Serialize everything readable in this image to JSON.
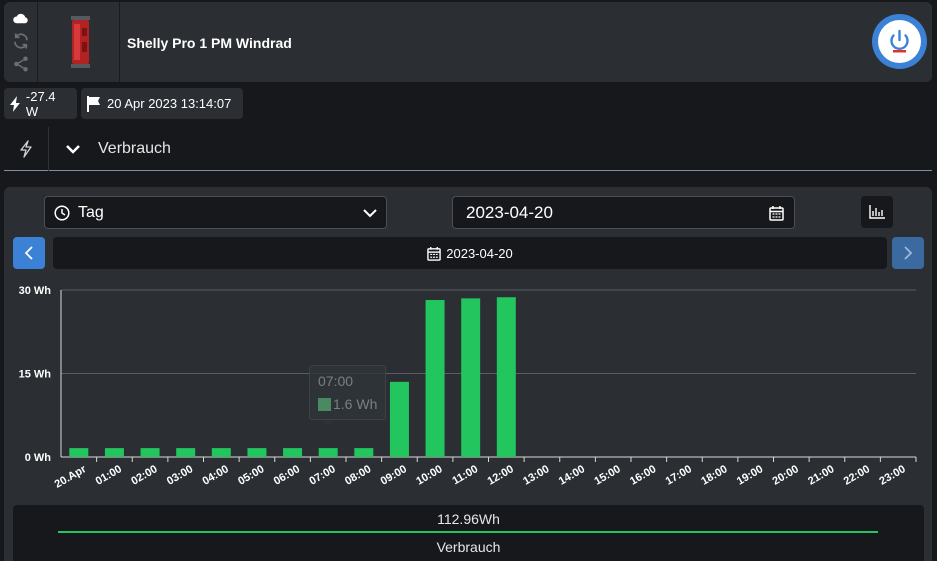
{
  "header": {
    "device_name": "Shelly Pro 1 PM Windrad",
    "icons": [
      "cloud-icon",
      "refresh-icon",
      "share-icon"
    ],
    "power_state": "on",
    "accent_color": "#3b82d6"
  },
  "status": {
    "power": "-27.4 W",
    "timestamp": "20 Apr 2023 13:14:07"
  },
  "section": {
    "title": "Verbrauch"
  },
  "controls": {
    "period": "Tag",
    "date_input": "2023-04-20",
    "current_date": "2023-04-20"
  },
  "tooltip": {
    "time": "07:00",
    "value": "1.6 Wh"
  },
  "legend": {
    "total": "112.96Wh",
    "name": "Verbrauch",
    "color": "#22c55e"
  },
  "chart_data": {
    "type": "bar",
    "categories": [
      "20.Apr",
      "01:00",
      "02:00",
      "03:00",
      "04:00",
      "05:00",
      "06:00",
      "07:00",
      "08:00",
      "09:00",
      "10:00",
      "11:00",
      "12:00",
      "13:00",
      "14:00",
      "15:00",
      "16:00",
      "17:00",
      "18:00",
      "19:00",
      "20:00",
      "21:00",
      "22:00",
      "23:00"
    ],
    "series": [
      {
        "name": "Verbrauch",
        "values": [
          1.6,
          1.6,
          1.6,
          1.6,
          1.6,
          1.6,
          1.6,
          1.6,
          1.6,
          13.5,
          28.2,
          28.5,
          28.7,
          null,
          null,
          null,
          null,
          null,
          null,
          null,
          null,
          null,
          null,
          null
        ]
      }
    ],
    "y_ticks": [
      "0 Wh",
      "15 Wh",
      "30 Wh"
    ],
    "ylim": [
      0,
      30
    ],
    "grid": true,
    "bar_color": "#22c55e"
  }
}
